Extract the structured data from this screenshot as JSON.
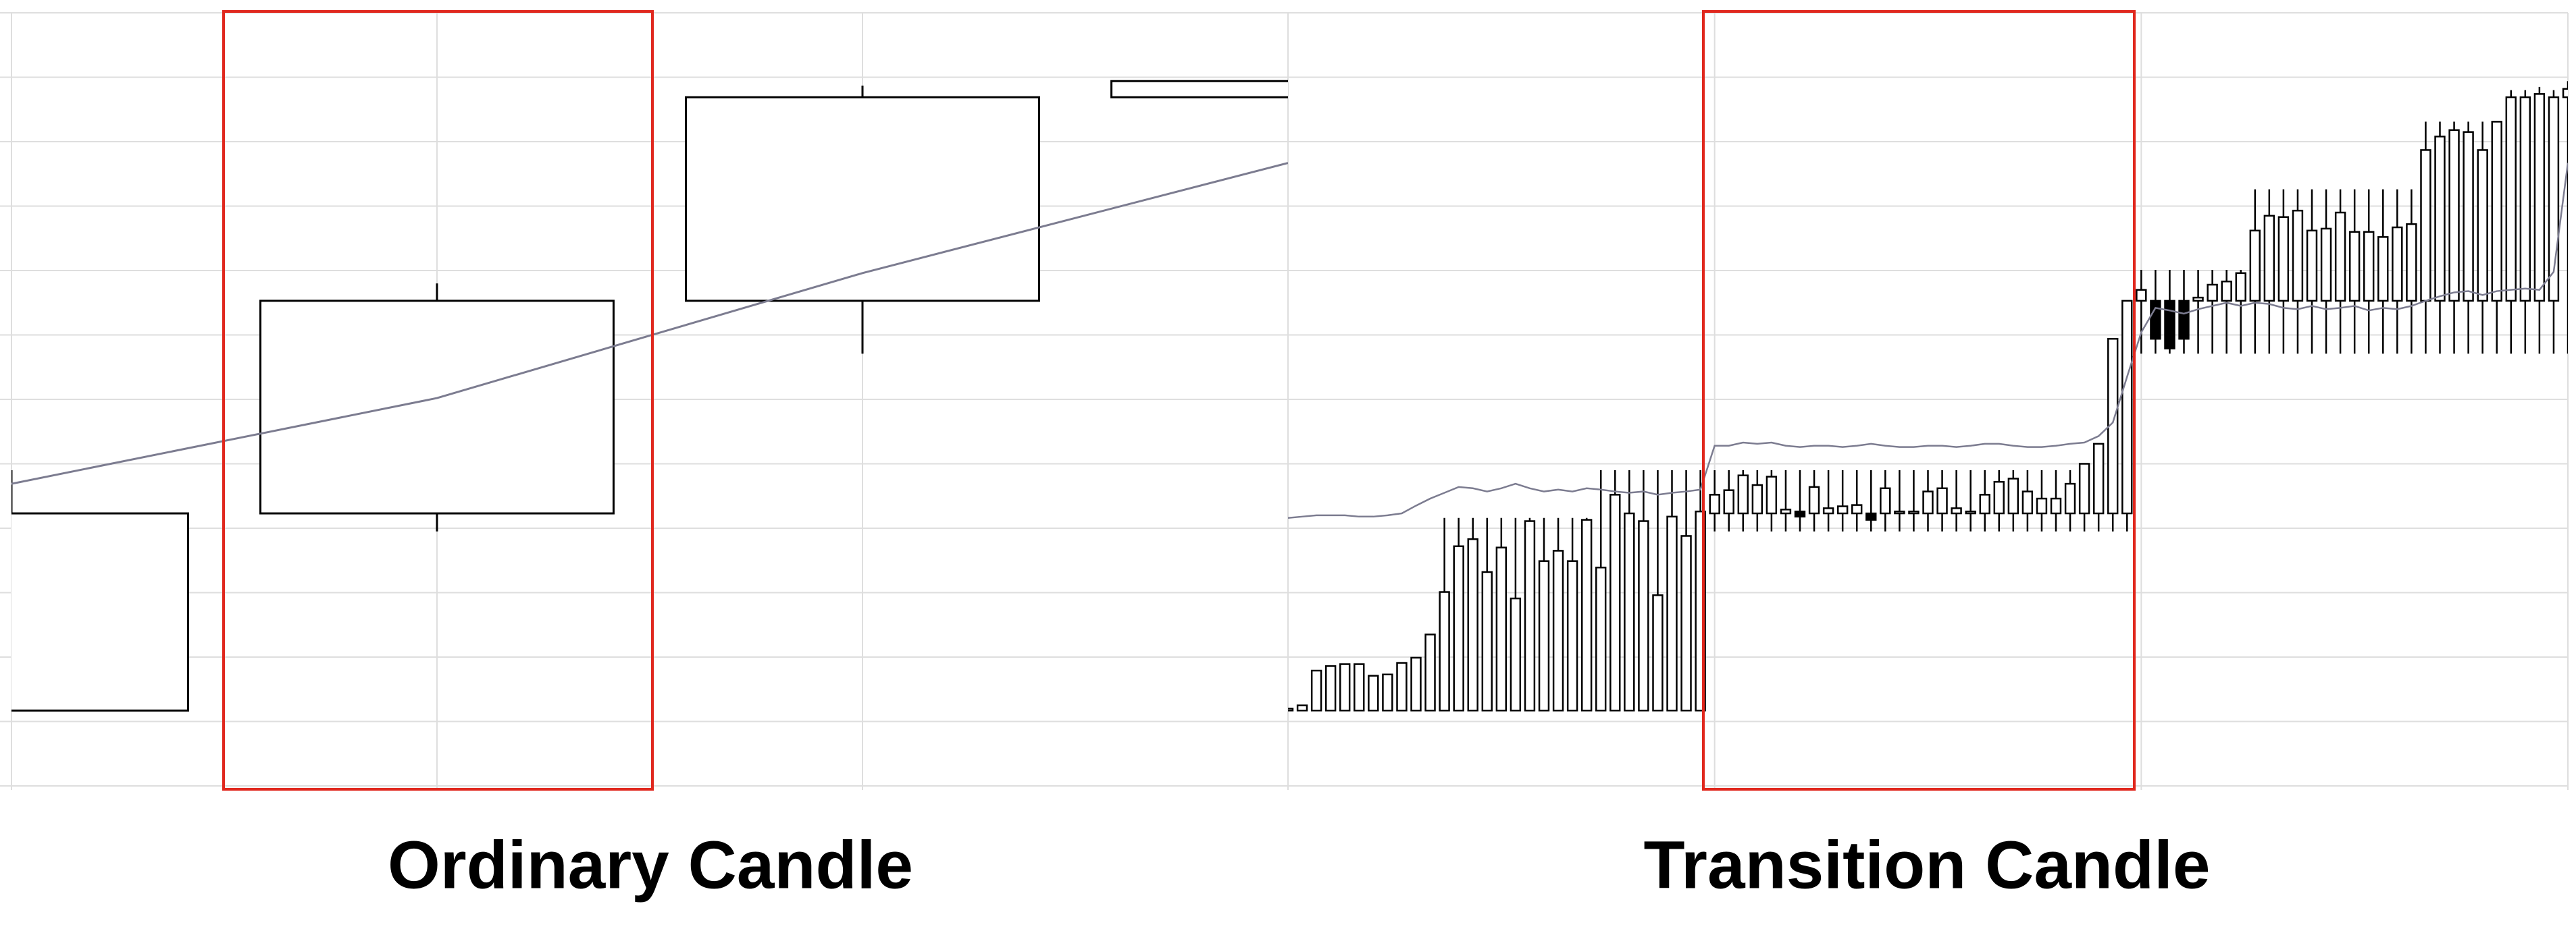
{
  "chart_data": [
    {
      "type": "candlestick",
      "title": "Ordinary Candle",
      "ylim": [
        0,
        12
      ],
      "yticks": [
        0,
        1,
        2,
        3,
        4,
        5,
        6,
        7,
        8,
        9,
        10,
        11,
        12
      ],
      "grid": true,
      "up_color": "#ffffff",
      "down_color": "#000000",
      "edge_color": "#000000",
      "ma_color": "#7c7c90",
      "open": [
        1.17,
        4.23,
        7.53,
        10.69
      ],
      "high": [
        4.9,
        7.8,
        10.87,
        10.94
      ],
      "low": [
        1.17,
        3.95,
        6.71,
        10.69
      ],
      "close": [
        4.23,
        7.53,
        10.69,
        10.94
      ],
      "ma": [
        4.69,
        6.02,
        7.96,
        9.67
      ]
    },
    {
      "type": "candlestick",
      "title": "Transition Candle",
      "ylim": [
        0,
        12
      ],
      "yticks": [
        0,
        1,
        2,
        3,
        4,
        5,
        6,
        7,
        8,
        9,
        10,
        11,
        12
      ],
      "grid": true,
      "up_color": "#ffffff",
      "down_color": "#000000",
      "edge_color": "#000000",
      "ma_color": "#7c7c90",
      "open": [
        1.17,
        1.17,
        1.17,
        1.17,
        1.17,
        1.17,
        1.17,
        1.17,
        1.17,
        1.17,
        1.17,
        1.17,
        1.17,
        1.17,
        1.17,
        1.17,
        1.17,
        1.17,
        1.17,
        1.17,
        1.17,
        1.17,
        1.17,
        1.17,
        1.17,
        1.17,
        1.17,
        1.17,
        1.17,
        1.17,
        4.23,
        4.23,
        4.23,
        4.23,
        4.23,
        4.23,
        4.26,
        4.23,
        4.23,
        4.23,
        4.23,
        4.23,
        4.23,
        4.23,
        4.23,
        4.23,
        4.23,
        4.23,
        4.23,
        4.23,
        4.23,
        4.23,
        4.23,
        4.23,
        4.23,
        4.23,
        4.23,
        4.23,
        4.23,
        4.23,
        7.53,
        7.53,
        7.53,
        7.53,
        7.53,
        7.53,
        7.53,
        7.53,
        7.53,
        7.53,
        7.53,
        7.53,
        7.53,
        7.53,
        7.53,
        7.53,
        7.53,
        7.53,
        7.53,
        7.53,
        7.53,
        7.53,
        7.53,
        7.53,
        7.53,
        7.53,
        7.53,
        7.53,
        7.53,
        7.53,
        10.69
      ],
      "high": [
        1.2,
        1.25,
        1.79,
        1.86,
        1.89,
        1.89,
        1.71,
        1.73,
        1.91,
        1.99,
        2.35,
        4.16,
        4.16,
        4.16,
        4.16,
        4.16,
        4.16,
        4.16,
        4.16,
        4.16,
        4.16,
        4.16,
        4.9,
        4.9,
        4.9,
        4.9,
        4.9,
        4.9,
        4.9,
        4.9,
        4.9,
        4.9,
        4.9,
        4.9,
        4.9,
        4.9,
        4.9,
        4.9,
        4.9,
        4.9,
        4.9,
        4.9,
        4.9,
        4.9,
        4.9,
        4.9,
        4.9,
        4.9,
        4.9,
        4.9,
        4.9,
        4.9,
        4.9,
        4.9,
        4.9,
        4.9,
        5.0,
        5.31,
        6.94,
        7.53,
        8.01,
        8.01,
        8.01,
        8.01,
        8.01,
        8.01,
        8.01,
        8.01,
        9.26,
        9.26,
        9.26,
        9.26,
        9.26,
        9.26,
        9.26,
        9.26,
        9.26,
        9.26,
        9.26,
        9.26,
        10.31,
        10.31,
        10.31,
        10.31,
        10.31,
        10.31,
        10.8,
        10.8,
        10.85,
        10.8,
        10.94
      ],
      "low": [
        1.17,
        1.17,
        1.17,
        1.17,
        1.17,
        1.17,
        1.17,
        1.17,
        1.17,
        1.17,
        1.17,
        1.17,
        1.17,
        1.17,
        1.17,
        1.17,
        1.17,
        1.17,
        1.17,
        1.17,
        1.17,
        1.17,
        1.17,
        1.17,
        1.17,
        1.17,
        1.17,
        1.17,
        1.17,
        1.17,
        3.95,
        3.95,
        3.95,
        3.95,
        3.95,
        3.95,
        3.95,
        3.95,
        3.95,
        3.95,
        3.95,
        3.95,
        3.95,
        3.95,
        3.95,
        3.95,
        3.95,
        3.95,
        3.95,
        3.95,
        3.95,
        3.95,
        3.95,
        3.95,
        3.95,
        3.95,
        3.95,
        3.95,
        3.95,
        3.95,
        6.71,
        6.71,
        6.71,
        6.71,
        6.71,
        6.71,
        6.71,
        6.71,
        6.71,
        6.71,
        6.71,
        6.71,
        6.71,
        6.71,
        6.71,
        6.71,
        6.71,
        6.71,
        6.71,
        6.71,
        6.71,
        6.71,
        6.71,
        6.71,
        6.71,
        6.71,
        6.71,
        6.71,
        6.71,
        6.71,
        6.71
      ],
      "close": [
        1.2,
        1.25,
        1.79,
        1.86,
        1.89,
        1.89,
        1.71,
        1.73,
        1.91,
        1.99,
        2.35,
        3.01,
        3.72,
        3.83,
        3.32,
        3.7,
        2.91,
        4.11,
        3.49,
        3.65,
        3.49,
        4.13,
        3.39,
        4.52,
        4.23,
        4.11,
        2.96,
        4.18,
        3.88,
        4.26,
        4.52,
        4.59,
        4.82,
        4.67,
        4.8,
        4.29,
        4.18,
        4.64,
        4.31,
        4.34,
        4.36,
        4.13,
        4.62,
        4.26,
        4.26,
        4.57,
        4.62,
        4.31,
        4.26,
        4.52,
        4.72,
        4.77,
        4.57,
        4.46,
        4.46,
        4.69,
        5.0,
        5.31,
        6.94,
        7.53,
        7.7,
        6.94,
        6.79,
        6.94,
        7.58,
        7.78,
        7.83,
        7.96,
        8.62,
        8.85,
        8.83,
        8.93,
        8.62,
        8.65,
        8.9,
        8.6,
        8.6,
        8.52,
        8.67,
        8.72,
        9.87,
        10.08,
        10.18,
        10.15,
        9.87,
        10.31,
        10.69,
        10.69,
        10.74,
        10.69,
        10.82
      ],
      "ma": [
        4.16,
        4.18,
        4.2,
        4.2,
        4.2,
        4.18,
        4.18,
        4.2,
        4.23,
        4.35,
        4.46,
        4.55,
        4.64,
        4.62,
        4.57,
        4.62,
        4.69,
        4.62,
        4.57,
        4.6,
        4.57,
        4.62,
        4.6,
        4.57,
        4.55,
        4.57,
        4.52,
        4.55,
        4.57,
        4.6,
        5.28,
        5.28,
        5.33,
        5.31,
        5.33,
        5.28,
        5.26,
        5.28,
        5.28,
        5.26,
        5.28,
        5.31,
        5.28,
        5.26,
        5.26,
        5.28,
        5.28,
        5.26,
        5.28,
        5.31,
        5.31,
        5.28,
        5.26,
        5.26,
        5.28,
        5.31,
        5.33,
        5.43,
        5.64,
        6.35,
        7.04,
        7.42,
        7.38,
        7.33,
        7.4,
        7.45,
        7.5,
        7.45,
        7.5,
        7.48,
        7.42,
        7.4,
        7.45,
        7.4,
        7.42,
        7.45,
        7.38,
        7.42,
        7.4,
        7.45,
        7.53,
        7.6,
        7.66,
        7.68,
        7.62,
        7.68,
        7.7,
        7.72,
        7.7,
        7.98,
        9.67
      ]
    }
  ]
}
